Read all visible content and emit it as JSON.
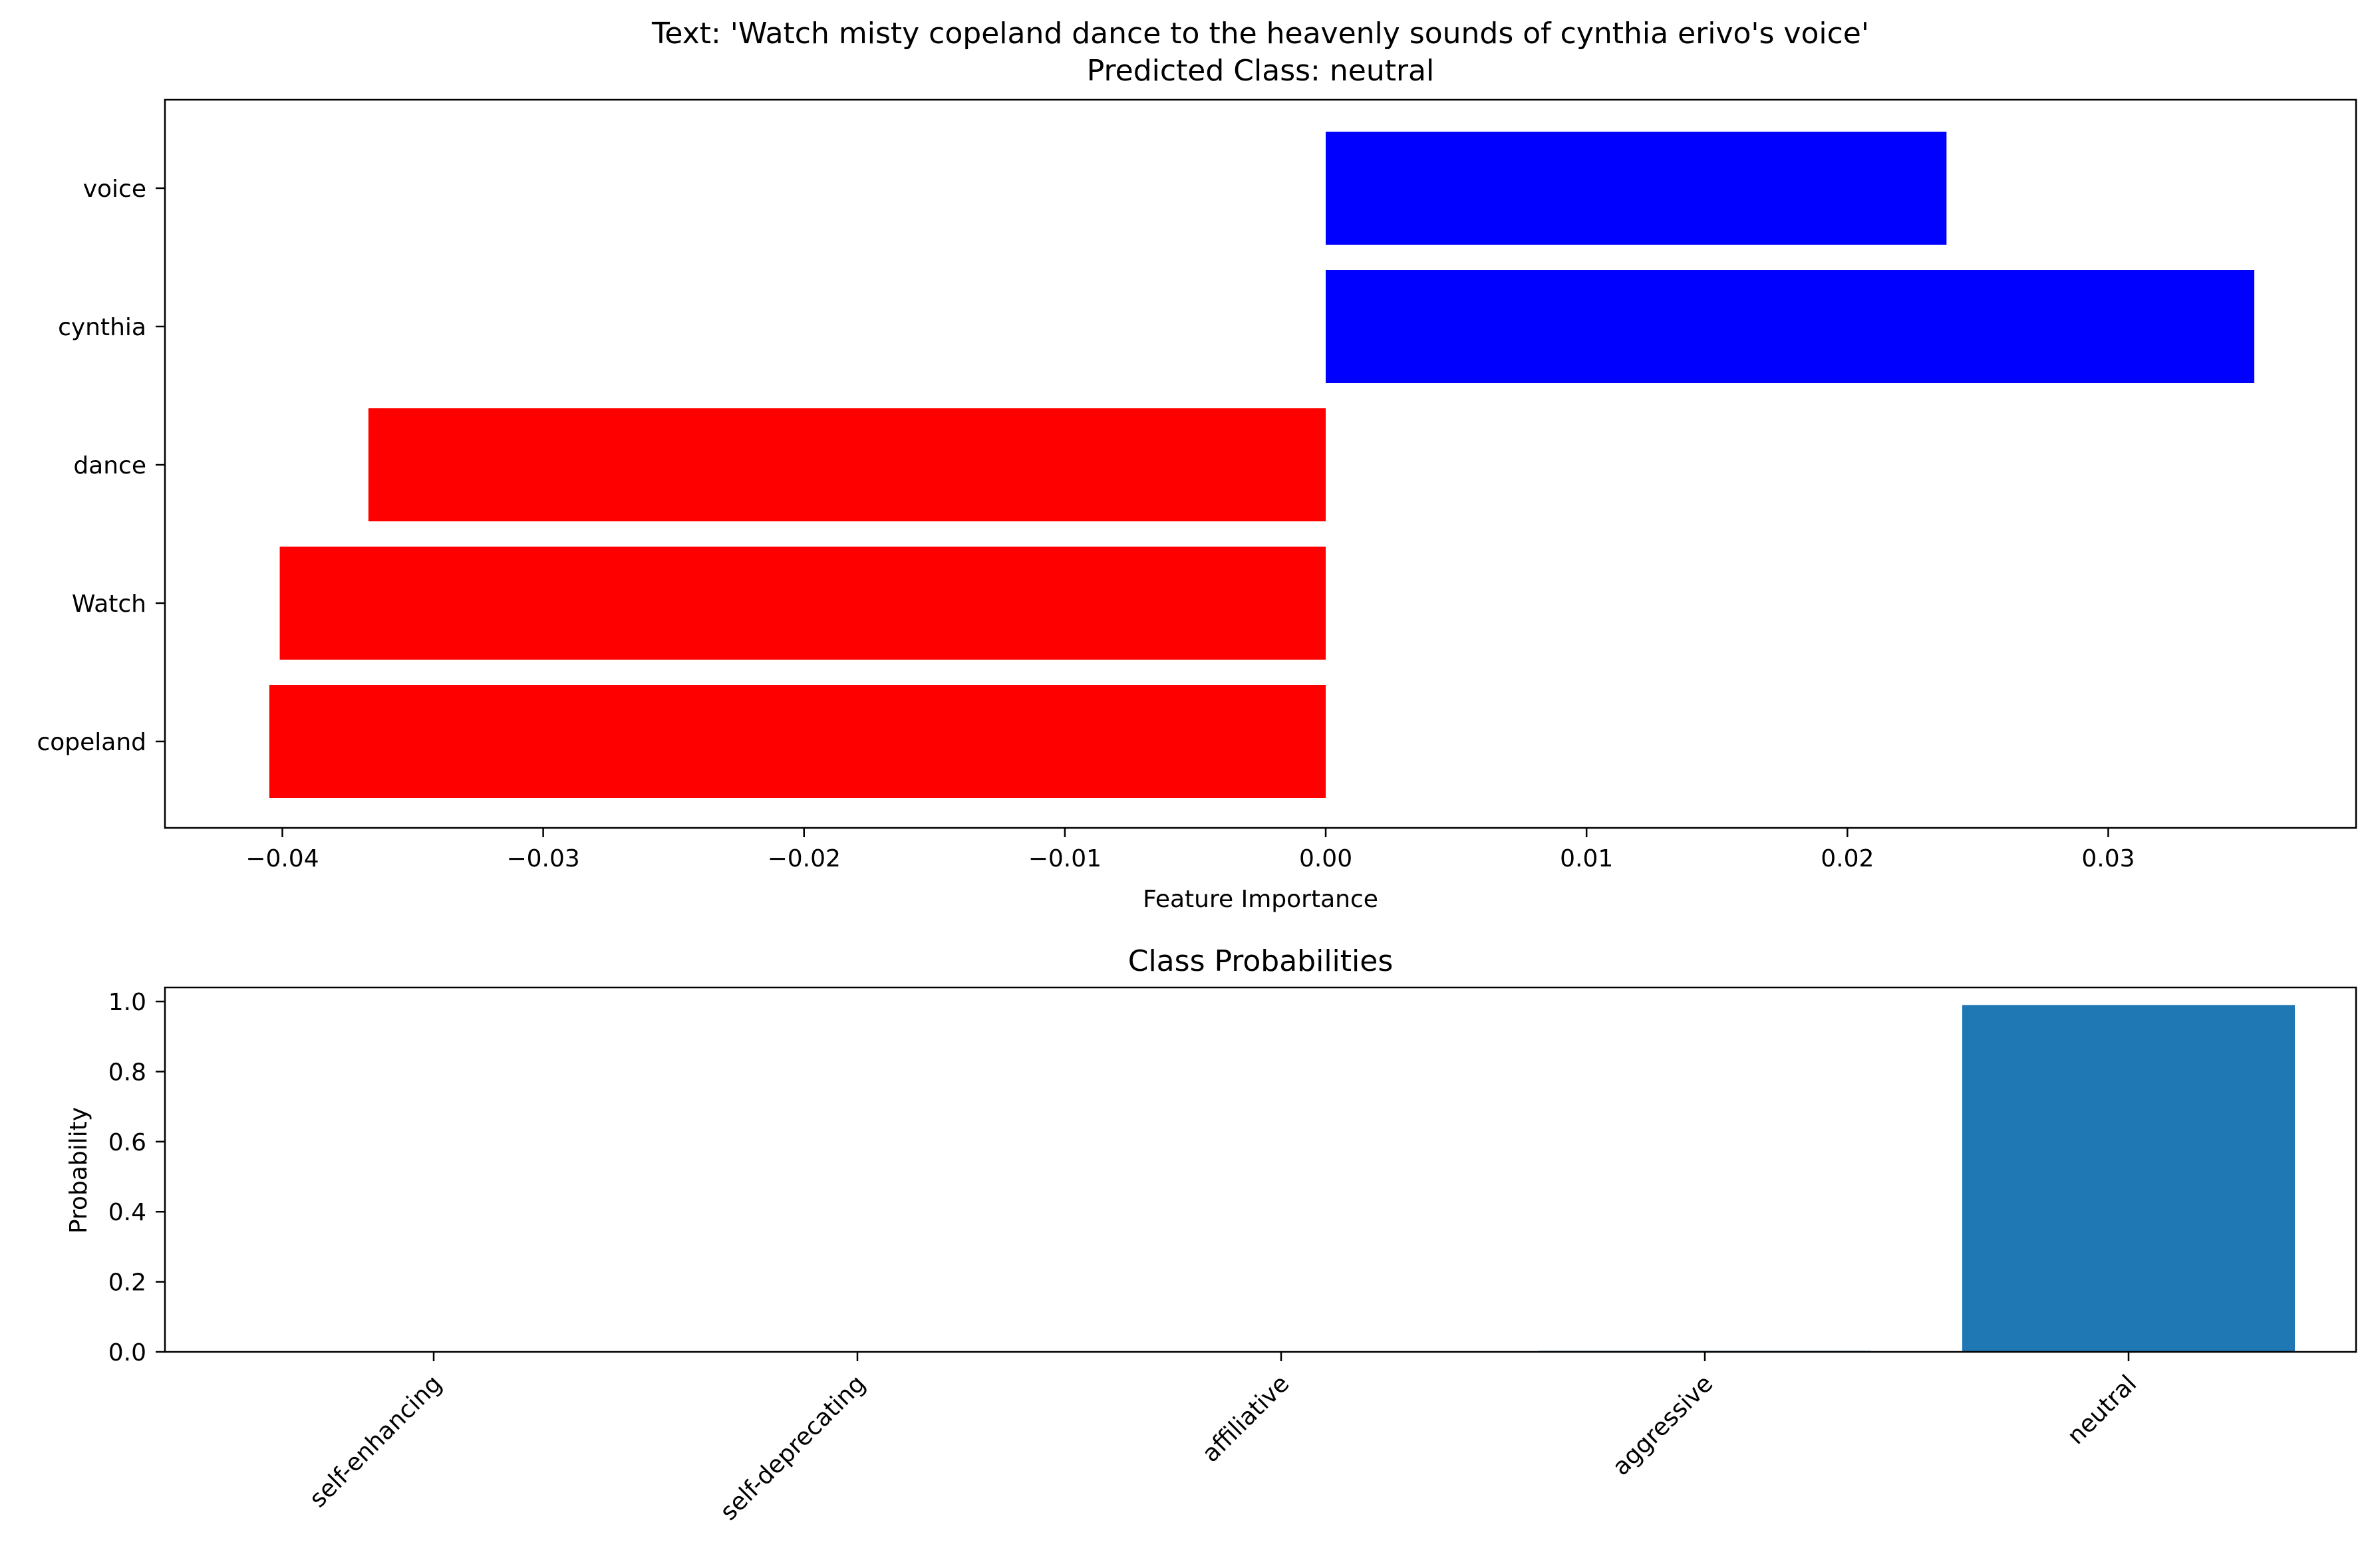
{
  "chart_data": [
    {
      "type": "bar",
      "orientation": "horizontal",
      "title_line1": "Text: 'Watch misty copeland dance to the heavenly sounds of cynthia erivo's voice'",
      "title_line2": "Predicted Class: neutral",
      "xlabel": "Feature Importance",
      "ylabel": "",
      "categories": [
        "voice",
        "cynthia",
        "dance",
        "Watch",
        "copeland"
      ],
      "values": [
        0.0238,
        0.0356,
        -0.0367,
        -0.0401,
        -0.0405
      ],
      "bar_colors": [
        "#0000ff",
        "#0000ff",
        "#ff0000",
        "#ff0000",
        "#ff0000"
      ],
      "xlim": [
        -0.0445,
        0.0395
      ],
      "xticks": [
        -0.04,
        -0.03,
        -0.02,
        -0.01,
        0.0,
        0.01,
        0.02,
        0.03
      ],
      "xtick_labels": [
        "−0.04",
        "−0.03",
        "−0.02",
        "−0.01",
        "0.00",
        "0.01",
        "0.02",
        "0.03"
      ],
      "grid": false,
      "legend": "none"
    },
    {
      "type": "bar",
      "orientation": "vertical",
      "title": "Class Probabilities",
      "xlabel": "",
      "ylabel": "Probability",
      "categories": [
        "self-enhancing",
        "self-deprecating",
        "affiliative",
        "aggressive",
        "neutral"
      ],
      "values": [
        0.0005,
        0.0005,
        0.0005,
        0.003,
        0.99
      ],
      "bar_color": "#1f77b4",
      "ylim": [
        0,
        1.04
      ],
      "yticks": [
        0.0,
        0.2,
        0.4,
        0.6,
        0.8,
        1.0
      ],
      "ytick_labels": [
        "0.0",
        "0.2",
        "0.4",
        "0.6",
        "0.8",
        "1.0"
      ],
      "grid": false,
      "legend": "none"
    }
  ]
}
